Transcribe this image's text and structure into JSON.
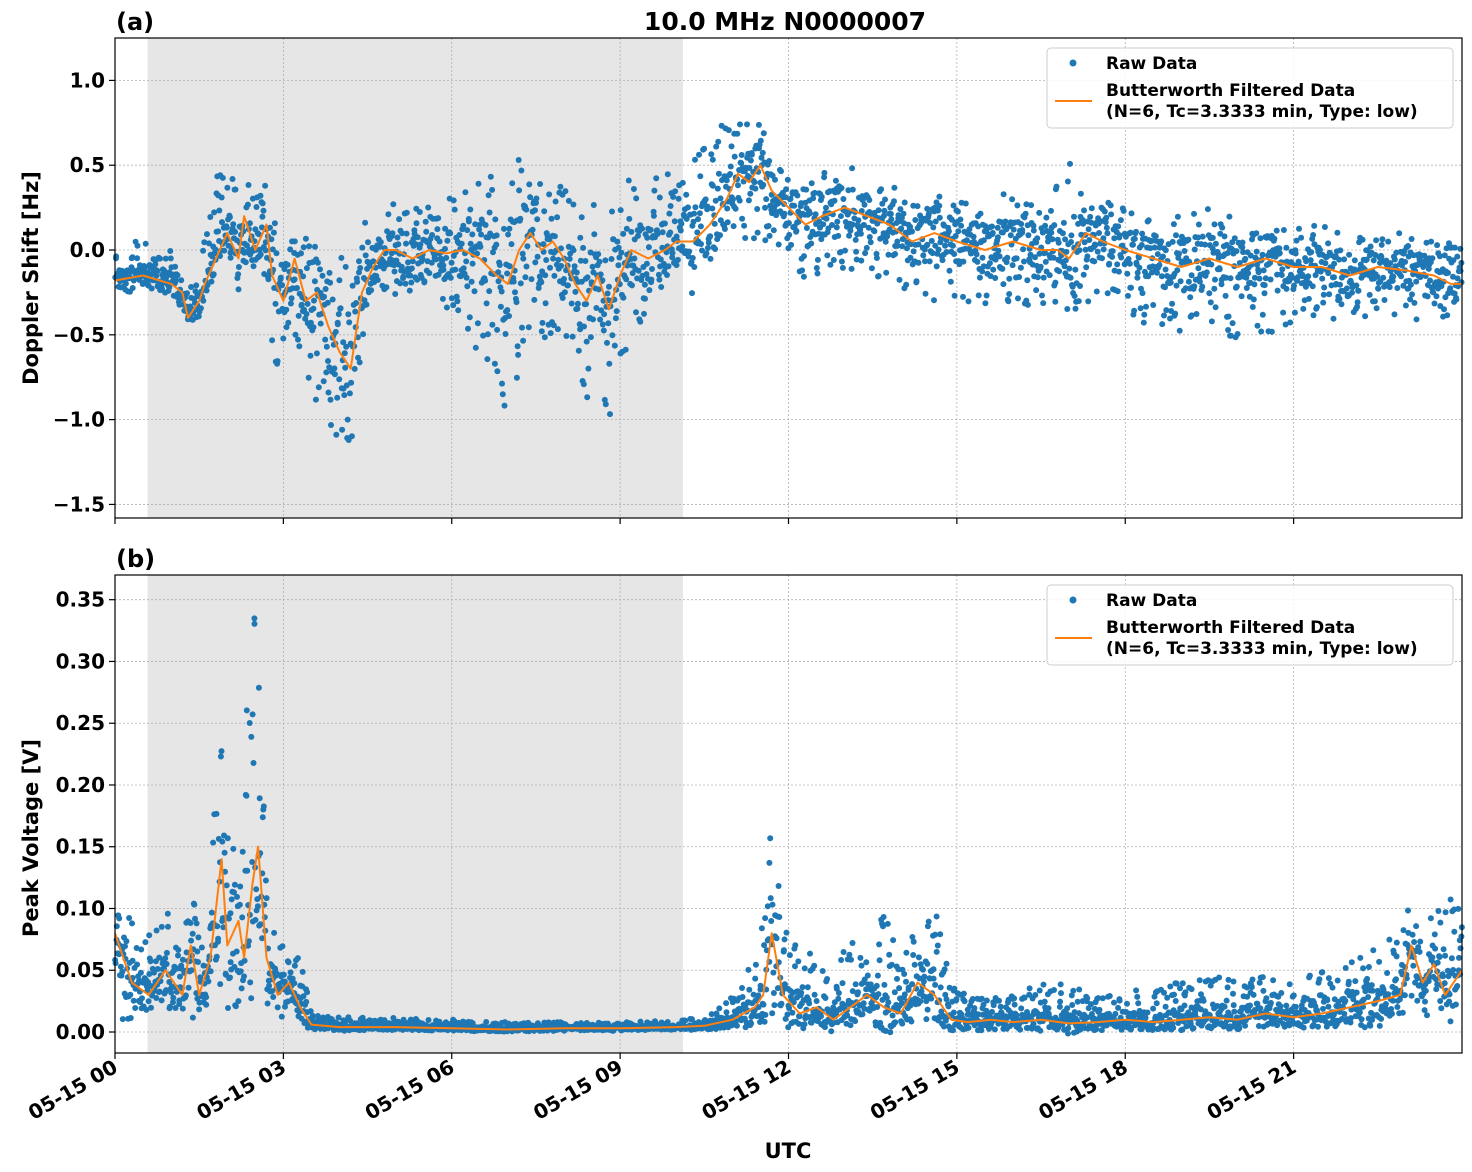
{
  "figure": {
    "title": "10.0 MHz N0000007",
    "xlabel": "UTC",
    "x_tick_labels": [
      "05-15 00",
      "05-15 03",
      "05-15 06",
      "05-15 09",
      "05-15 12",
      "05-15 15",
      "05-15 18",
      "05-15 21"
    ],
    "legend": {
      "raw_label": "Raw Data",
      "filtered_label_line1": "Butterworth Filtered Data",
      "filtered_label_line2": "(N=6, Tc=3.3333 min, Type: low)"
    },
    "colors": {
      "raw": "#1f77b4",
      "filtered": "#ff7f0e",
      "shade": "#e6e6e6",
      "grid": "#b0b0b0"
    }
  },
  "chart_data": [
    {
      "type": "scatter",
      "panel": "(a)",
      "title": "10.0 MHz N0000007",
      "xlabel": "",
      "ylabel": "Doppler Shift [Hz]",
      "x_unit": "hours UTC on 05-15",
      "xlim": [
        0,
        24
      ],
      "ylim": [
        -1.58,
        1.25
      ],
      "y_ticks": [
        1.0,
        0.5,
        0.0,
        -0.5,
        -1.0,
        -1.5
      ],
      "y_tick_labels": [
        "1.0",
        "0.5",
        "0.0",
        "−0.5",
        "−1.0",
        "−1.5"
      ],
      "shaded_interval": [
        0.58,
        10.12
      ],
      "grid": true,
      "legend_position": "top-right",
      "series": [
        {
          "name": "Butterworth Filtered Data (N=6, Tc=3.3333 min, Type: low)",
          "kind": "line",
          "x": [
            0,
            0.5,
            1.0,
            1.2,
            1.3,
            1.5,
            1.6,
            1.8,
            2.0,
            2.2,
            2.3,
            2.5,
            2.7,
            2.8,
            3.0,
            3.2,
            3.4,
            3.6,
            3.8,
            4.0,
            4.2,
            4.4,
            4.6,
            4.8,
            5.0,
            5.3,
            5.6,
            5.9,
            6.2,
            6.5,
            6.8,
            7.0,
            7.2,
            7.4,
            7.6,
            7.8,
            8.0,
            8.2,
            8.4,
            8.6,
            8.8,
            9.0,
            9.2,
            9.5,
            9.8,
            10.0,
            10.3,
            10.6,
            10.9,
            11.1,
            11.3,
            11.5,
            11.7,
            12.0,
            12.3,
            12.6,
            13.0,
            13.4,
            13.8,
            14.2,
            14.6,
            15.0,
            15.5,
            16.0,
            16.5,
            16.8,
            17.0,
            17.3,
            17.6,
            18.0,
            18.5,
            19.0,
            19.5,
            20.0,
            20.5,
            21.0,
            21.5,
            22.0,
            22.5,
            23.0,
            23.5,
            23.8,
            24.0
          ],
          "y": [
            -0.18,
            -0.15,
            -0.2,
            -0.25,
            -0.4,
            -0.3,
            -0.2,
            -0.05,
            0.1,
            -0.05,
            0.2,
            0.0,
            0.15,
            -0.15,
            -0.3,
            -0.05,
            -0.3,
            -0.25,
            -0.45,
            -0.6,
            -0.7,
            -0.25,
            -0.1,
            0.0,
            0.0,
            -0.05,
            0.0,
            -0.02,
            0.0,
            -0.05,
            -0.15,
            -0.2,
            0.0,
            0.1,
            0.0,
            0.05,
            -0.05,
            -0.2,
            -0.3,
            -0.15,
            -0.35,
            -0.15,
            0.0,
            -0.05,
            0.0,
            0.05,
            0.05,
            0.15,
            0.3,
            0.45,
            0.4,
            0.5,
            0.35,
            0.25,
            0.15,
            0.2,
            0.25,
            0.2,
            0.15,
            0.05,
            0.1,
            0.05,
            0.0,
            0.05,
            0.0,
            0.0,
            -0.05,
            0.1,
            0.05,
            0.0,
            -0.05,
            -0.1,
            -0.05,
            -0.1,
            -0.05,
            -0.1,
            -0.1,
            -0.15,
            -0.1,
            -0.12,
            -0.15,
            -0.2,
            -0.2
          ]
        },
        {
          "name": "Raw Data",
          "kind": "points",
          "x": [
            0,
            0.5,
            1.0,
            1.2,
            1.3,
            1.5,
            1.6,
            1.8,
            2.0,
            2.2,
            2.3,
            2.5,
            2.7,
            2.8,
            3.0,
            3.2,
            3.4,
            3.6,
            3.8,
            4.0,
            4.2,
            4.4,
            4.6,
            4.8,
            5.0,
            5.3,
            5.6,
            5.9,
            6.2,
            6.5,
            6.8,
            7.0,
            7.2,
            7.4,
            7.6,
            7.8,
            8.0,
            8.2,
            8.4,
            8.6,
            8.8,
            9.0,
            9.2,
            9.5,
            9.8,
            10.0,
            10.3,
            10.6,
            10.9,
            11.1,
            11.3,
            11.5,
            11.7,
            12.0,
            12.3,
            12.6,
            13.0,
            13.4,
            13.8,
            14.2,
            14.6,
            15.0,
            15.5,
            16.0,
            16.5,
            16.8,
            17.0,
            17.3,
            17.6,
            18.0,
            18.5,
            19.0,
            19.5,
            20.0,
            20.5,
            21.0,
            21.5,
            22.0,
            22.5,
            23.0,
            23.5,
            23.8,
            24.0
          ],
          "y_min": [
            -0.25,
            -0.25,
            -0.3,
            -0.35,
            -0.5,
            -0.4,
            -0.3,
            -0.2,
            -0.1,
            -0.25,
            -0.05,
            -0.3,
            -0.2,
            -0.6,
            -0.9,
            -0.5,
            -0.8,
            -0.9,
            -1.0,
            -1.2,
            -1.2,
            -0.6,
            -0.35,
            -0.25,
            -0.3,
            -0.35,
            -0.3,
            -0.35,
            -0.5,
            -0.6,
            -0.9,
            -1.0,
            -0.7,
            -0.5,
            -0.6,
            -0.5,
            -0.5,
            -0.6,
            -0.9,
            -0.7,
            -1.0,
            -0.7,
            -0.5,
            -0.4,
            -0.3,
            -0.2,
            -0.3,
            -0.1,
            0.05,
            0.1,
            0.0,
            0.1,
            0.0,
            -0.1,
            -0.2,
            -0.2,
            -0.1,
            -0.15,
            -0.2,
            -0.3,
            -0.3,
            -0.3,
            -0.35,
            -0.3,
            -0.35,
            -0.3,
            -0.4,
            -0.3,
            -0.35,
            -0.4,
            -0.45,
            -0.5,
            -0.45,
            -0.55,
            -0.5,
            -0.45,
            -0.4,
            -0.45,
            -0.4,
            -0.4,
            -0.45,
            -0.4,
            -0.4
          ],
          "y_max": [
            0.05,
            0.05,
            0.0,
            -0.1,
            -0.25,
            -0.1,
            0.1,
            0.45,
            0.5,
            0.4,
            0.55,
            0.3,
            0.45,
            0.2,
            0.15,
            0.2,
            0.1,
            0.1,
            0.05,
            0.0,
            -0.1,
            0.15,
            0.2,
            0.25,
            0.3,
            0.35,
            0.3,
            0.3,
            0.35,
            0.4,
            0.45,
            0.4,
            0.55,
            0.5,
            0.45,
            0.4,
            0.4,
            0.25,
            0.2,
            0.3,
            0.2,
            0.4,
            0.45,
            0.4,
            0.5,
            0.4,
            0.55,
            0.65,
            0.8,
            0.85,
            0.75,
            0.8,
            0.6,
            0.45,
            0.4,
            0.45,
            0.5,
            0.45,
            0.4,
            0.35,
            0.35,
            0.3,
            0.3,
            0.35,
            0.3,
            0.4,
            0.55,
            0.35,
            0.3,
            0.25,
            0.2,
            0.2,
            0.25,
            0.2,
            0.2,
            0.15,
            0.15,
            0.1,
            0.1,
            0.1,
            0.05,
            0.05,
            0.05
          ]
        }
      ]
    },
    {
      "type": "scatter",
      "panel": "(b)",
      "title": "",
      "xlabel": "UTC",
      "ylabel": "Peak Voltage [V]",
      "x_unit": "hours UTC on 05-15",
      "xlim": [
        0,
        24
      ],
      "ylim": [
        -0.017,
        0.37
      ],
      "y_ticks": [
        0.35,
        0.3,
        0.25,
        0.2,
        0.15,
        0.1,
        0.05,
        0.0
      ],
      "y_tick_labels": [
        "0.35",
        "0.30",
        "0.25",
        "0.20",
        "0.15",
        "0.10",
        "0.05",
        "0.00"
      ],
      "shaded_interval": [
        0.58,
        10.12
      ],
      "grid": true,
      "legend_position": "top-right",
      "series": [
        {
          "name": "Butterworth Filtered Data (N=6, Tc=3.3333 min, Type: low)",
          "kind": "line",
          "x": [
            0,
            0.3,
            0.6,
            0.9,
            1.2,
            1.35,
            1.5,
            1.7,
            1.8,
            1.9,
            2.0,
            2.2,
            2.3,
            2.45,
            2.55,
            2.7,
            2.9,
            3.1,
            3.3,
            3.5,
            4.0,
            5.0,
            6.0,
            7.0,
            8.0,
            9.0,
            10.0,
            10.5,
            11.0,
            11.4,
            11.55,
            11.7,
            11.9,
            12.2,
            12.5,
            12.8,
            13.1,
            13.4,
            13.7,
            14.0,
            14.3,
            14.6,
            14.9,
            15.2,
            15.6,
            16.0,
            16.5,
            17.0,
            17.5,
            18.0,
            18.5,
            19.0,
            19.5,
            20.0,
            20.5,
            21.0,
            21.5,
            22.0,
            22.5,
            22.9,
            23.1,
            23.3,
            23.5,
            23.7,
            24.0
          ],
          "y": [
            0.08,
            0.04,
            0.03,
            0.05,
            0.03,
            0.07,
            0.03,
            0.06,
            0.1,
            0.14,
            0.07,
            0.09,
            0.06,
            0.12,
            0.15,
            0.06,
            0.03,
            0.04,
            0.02,
            0.006,
            0.004,
            0.004,
            0.003,
            0.002,
            0.003,
            0.003,
            0.004,
            0.005,
            0.01,
            0.02,
            0.03,
            0.08,
            0.03,
            0.015,
            0.02,
            0.01,
            0.02,
            0.03,
            0.02,
            0.015,
            0.04,
            0.03,
            0.01,
            0.008,
            0.01,
            0.008,
            0.01,
            0.007,
            0.008,
            0.01,
            0.008,
            0.01,
            0.012,
            0.01,
            0.015,
            0.012,
            0.015,
            0.02,
            0.025,
            0.03,
            0.07,
            0.04,
            0.055,
            0.03,
            0.05
          ]
        },
        {
          "name": "Raw Data",
          "kind": "points",
          "x": [
            0,
            0.3,
            0.6,
            0.9,
            1.2,
            1.35,
            1.5,
            1.7,
            1.8,
            1.9,
            2.0,
            2.2,
            2.3,
            2.45,
            2.55,
            2.7,
            2.9,
            3.1,
            3.3,
            3.5,
            4.0,
            5.0,
            6.0,
            7.0,
            8.0,
            9.0,
            10.0,
            10.5,
            11.0,
            11.4,
            11.55,
            11.7,
            11.9,
            12.2,
            12.5,
            12.8,
            13.1,
            13.4,
            13.7,
            14.0,
            14.3,
            14.6,
            14.9,
            15.2,
            15.6,
            16.0,
            16.5,
            17.0,
            17.5,
            18.0,
            18.5,
            19.0,
            19.5,
            20.0,
            20.5,
            21.0,
            21.5,
            22.0,
            22.5,
            22.9,
            23.1,
            23.3,
            23.5,
            23.7,
            24.0
          ],
          "y_min": [
            0.01,
            0.01,
            0.01,
            0.01,
            0.01,
            0.01,
            0.01,
            0.01,
            0.02,
            0.03,
            0.01,
            0.02,
            0.01,
            0.03,
            0.04,
            0.01,
            0.01,
            0.01,
            0.005,
            0.002,
            0.001,
            0.001,
            0.001,
            0.0,
            0.001,
            0.001,
            0.001,
            0.002,
            0.002,
            0.003,
            0.005,
            0.01,
            0.003,
            0.002,
            0.002,
            0.002,
            0.003,
            0.005,
            0.003,
            0.003,
            0.005,
            0.005,
            0.001,
            0.001,
            0.001,
            0.001,
            0.001,
            0.001,
            0.001,
            0.001,
            0.001,
            0.001,
            0.002,
            0.001,
            0.002,
            0.002,
            0.002,
            0.003,
            0.004,
            0.005,
            0.01,
            0.005,
            0.008,
            0.005,
            0.008
          ],
          "y_max": [
            0.12,
            0.09,
            0.08,
            0.1,
            0.07,
            0.12,
            0.08,
            0.12,
            0.25,
            0.28,
            0.2,
            0.22,
            0.25,
            0.35,
            0.34,
            0.12,
            0.07,
            0.07,
            0.06,
            0.015,
            0.012,
            0.012,
            0.01,
            0.008,
            0.008,
            0.008,
            0.01,
            0.012,
            0.03,
            0.06,
            0.1,
            0.17,
            0.09,
            0.08,
            0.06,
            0.05,
            0.08,
            0.06,
            0.1,
            0.06,
            0.1,
            0.11,
            0.04,
            0.03,
            0.03,
            0.03,
            0.04,
            0.04,
            0.03,
            0.03,
            0.04,
            0.04,
            0.05,
            0.04,
            0.05,
            0.04,
            0.05,
            0.06,
            0.07,
            0.08,
            0.12,
            0.08,
            0.1,
            0.1,
            0.14
          ]
        }
      ]
    }
  ]
}
